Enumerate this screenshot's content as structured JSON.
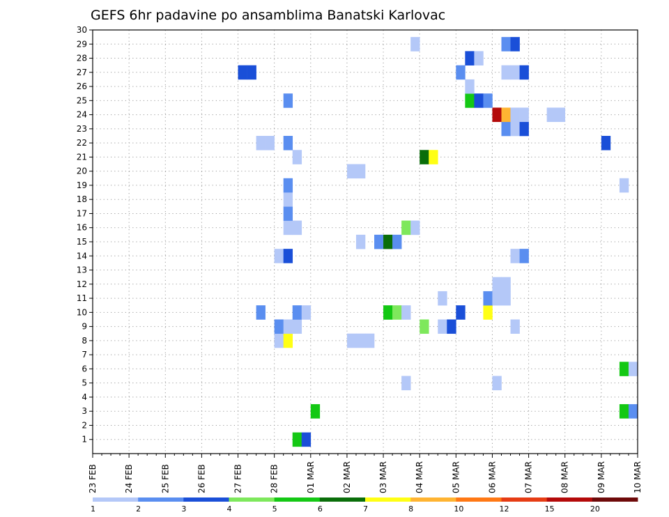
{
  "chart_data": {
    "type": "heatmap",
    "title": "GEFS 6hr padavine po ansamblima Banatski Karlovac",
    "xlabel": "",
    "ylabel": "",
    "x_labels": [
      "23 FEB",
      "24 FEB",
      "25 FEB",
      "26 FEB",
      "27 FEB",
      "28 FEB",
      "01 MAR",
      "02 MAR",
      "03 MAR",
      "04 MAR",
      "05 MAR",
      "06 MAR",
      "07 MAR",
      "08 MAR",
      "09 MAR",
      "10 MAR"
    ],
    "y_range": [
      0,
      30
    ],
    "y_ticks": [
      1,
      2,
      3,
      4,
      5,
      6,
      7,
      8,
      9,
      10,
      11,
      12,
      13,
      14,
      15,
      16,
      17,
      18,
      19,
      20,
      21,
      22,
      23,
      24,
      25,
      26,
      27,
      28,
      29,
      30
    ],
    "time_step_hours": 6,
    "grid": true,
    "colorbar": {
      "levels": [
        "1",
        "2",
        "3",
        "4",
        "5",
        "6",
        "7",
        "8",
        "10",
        "12",
        "15",
        "20"
      ],
      "colors": [
        "#b4c8f8",
        "#5a8ef0",
        "#1a4fd8",
        "#7ee85c",
        "#14c814",
        "#0a6e0a",
        "#ffff14",
        "#ffb432",
        "#ff7814",
        "#e63c14",
        "#b40a0a",
        "#6e0a0a"
      ]
    },
    "cells": [
      {
        "t": "28 FEB 12Z",
        "member": 1,
        "bin": 5
      },
      {
        "t": "28 FEB 18Z",
        "member": 1,
        "bin": 3
      },
      {
        "t": "01 MAR 00Z",
        "member": 3,
        "bin": 5
      },
      {
        "t": "03 MAR 12Z",
        "member": 5,
        "bin": 1
      },
      {
        "t": "06 MAR 00Z",
        "member": 5,
        "bin": 1
      },
      {
        "t": "09 MAR 12Z",
        "member": 6,
        "bin": 5
      },
      {
        "t": "09 MAR 18Z",
        "member": 6,
        "bin": 1
      },
      {
        "t": "09 MAR 12Z",
        "member": 3,
        "bin": 5
      },
      {
        "t": "09 MAR 18Z",
        "member": 3,
        "bin": 2
      },
      {
        "t": "10 MAR 00Z",
        "member": 3,
        "bin": 1
      },
      {
        "t": "28 FEB 00Z",
        "member": 8,
        "bin": 1
      },
      {
        "t": "28 FEB 06Z",
        "member": 8,
        "bin": 7
      },
      {
        "t": "02 MAR 00Z",
        "member": 8,
        "bin": 1
      },
      {
        "t": "02 MAR 06Z",
        "member": 8,
        "bin": 1
      },
      {
        "t": "02 MAR 12Z",
        "member": 8,
        "bin": 1
      },
      {
        "t": "28 FEB 00Z",
        "member": 9,
        "bin": 2
      },
      {
        "t": "28 FEB 06Z",
        "member": 9,
        "bin": 1
      },
      {
        "t": "28 FEB 12Z",
        "member": 9,
        "bin": 1
      },
      {
        "t": "04 MAR 00Z",
        "member": 9,
        "bin": 4
      },
      {
        "t": "04 MAR 12Z",
        "member": 9,
        "bin": 1
      },
      {
        "t": "04 MAR 18Z",
        "member": 9,
        "bin": 3
      },
      {
        "t": "06 MAR 12Z",
        "member": 9,
        "bin": 1
      },
      {
        "t": "27 FEB 12Z",
        "member": 10,
        "bin": 2
      },
      {
        "t": "28 FEB 12Z",
        "member": 10,
        "bin": 2
      },
      {
        "t": "28 FEB 18Z",
        "member": 10,
        "bin": 1
      },
      {
        "t": "03 MAR 00Z",
        "member": 10,
        "bin": 5
      },
      {
        "t": "03 MAR 06Z",
        "member": 10,
        "bin": 4
      },
      {
        "t": "03 MAR 12Z",
        "member": 10,
        "bin": 1
      },
      {
        "t": "05 MAR 00Z",
        "member": 10,
        "bin": 3
      },
      {
        "t": "05 MAR 18Z",
        "member": 10,
        "bin": 7
      },
      {
        "t": "10 MAR 00Z",
        "member": 10,
        "bin": 3
      },
      {
        "t": "04 MAR 12Z",
        "member": 11,
        "bin": 1
      },
      {
        "t": "05 MAR 18Z",
        "member": 11,
        "bin": 2
      },
      {
        "t": "06 MAR 00Z",
        "member": 11,
        "bin": 1
      },
      {
        "t": "06 MAR 06Z",
        "member": 11,
        "bin": 1
      },
      {
        "t": "06 MAR 00Z",
        "member": 12,
        "bin": 1
      },
      {
        "t": "06 MAR 06Z",
        "member": 12,
        "bin": 1
      },
      {
        "t": "28 FEB 00Z",
        "member": 14,
        "bin": 1
      },
      {
        "t": "28 FEB 06Z",
        "member": 14,
        "bin": 3
      },
      {
        "t": "06 MAR 12Z",
        "member": 14,
        "bin": 1
      },
      {
        "t": "06 MAR 18Z",
        "member": 14,
        "bin": 2
      },
      {
        "t": "02 MAR 06Z",
        "member": 15,
        "bin": 1
      },
      {
        "t": "02 MAR 18Z",
        "member": 15,
        "bin": 2
      },
      {
        "t": "03 MAR 00Z",
        "member": 15,
        "bin": 6
      },
      {
        "t": "03 MAR 06Z",
        "member": 15,
        "bin": 2
      },
      {
        "t": "28 FEB 06Z",
        "member": 16,
        "bin": 1
      },
      {
        "t": "28 FEB 12Z",
        "member": 16,
        "bin": 1
      },
      {
        "t": "03 MAR 12Z",
        "member": 16,
        "bin": 4
      },
      {
        "t": "03 MAR 18Z",
        "member": 16,
        "bin": 1
      },
      {
        "t": "28 FEB 06Z",
        "member": 17,
        "bin": 2
      },
      {
        "t": "28 FEB 06Z",
        "member": 18,
        "bin": 1
      },
      {
        "t": "28 FEB 06Z",
        "member": 19,
        "bin": 2
      },
      {
        "t": "09 MAR 12Z",
        "member": 19,
        "bin": 1
      },
      {
        "t": "02 MAR 00Z",
        "member": 20,
        "bin": 1
      },
      {
        "t": "02 MAR 06Z",
        "member": 20,
        "bin": 1
      },
      {
        "t": "28 FEB 12Z",
        "member": 21,
        "bin": 1
      },
      {
        "t": "04 MAR 00Z",
        "member": 21,
        "bin": 6
      },
      {
        "t": "04 MAR 06Z",
        "member": 21,
        "bin": 7
      },
      {
        "t": "27 FEB 12Z",
        "member": 22,
        "bin": 1
      },
      {
        "t": "27 FEB 18Z",
        "member": 22,
        "bin": 1
      },
      {
        "t": "28 FEB 06Z",
        "member": 22,
        "bin": 2
      },
      {
        "t": "09 MAR 00Z",
        "member": 22,
        "bin": 3
      },
      {
        "t": "06 MAR 06Z",
        "member": 23,
        "bin": 2
      },
      {
        "t": "06 MAR 12Z",
        "member": 23,
        "bin": 1
      },
      {
        "t": "06 MAR 18Z",
        "member": 23,
        "bin": 3
      },
      {
        "t": "06 MAR 00Z",
        "member": 24,
        "bin": 11
      },
      {
        "t": "06 MAR 06Z",
        "member": 24,
        "bin": 8
      },
      {
        "t": "06 MAR 12Z",
        "member": 24,
        "bin": 1
      },
      {
        "t": "06 MAR 18Z",
        "member": 24,
        "bin": 1
      },
      {
        "t": "07 MAR 12Z",
        "member": 24,
        "bin": 1
      },
      {
        "t": "07 MAR 18Z",
        "member": 24,
        "bin": 1
      },
      {
        "t": "28 FEB 06Z",
        "member": 25,
        "bin": 2
      },
      {
        "t": "05 MAR 06Z",
        "member": 25,
        "bin": 5
      },
      {
        "t": "05 MAR 12Z",
        "member": 25,
        "bin": 3
      },
      {
        "t": "05 MAR 18Z",
        "member": 25,
        "bin": 2
      },
      {
        "t": "05 MAR 06Z",
        "member": 26,
        "bin": 1
      },
      {
        "t": "27 FEB 00Z",
        "member": 27,
        "bin": 3
      },
      {
        "t": "27 FEB 06Z",
        "member": 27,
        "bin": 3
      },
      {
        "t": "05 MAR 00Z",
        "member": 27,
        "bin": 2
      },
      {
        "t": "06 MAR 06Z",
        "member": 27,
        "bin": 1
      },
      {
        "t": "06 MAR 12Z",
        "member": 27,
        "bin": 1
      },
      {
        "t": "06 MAR 18Z",
        "member": 27,
        "bin": 3
      },
      {
        "t": "05 MAR 06Z",
        "member": 28,
        "bin": 3
      },
      {
        "t": "05 MAR 12Z",
        "member": 28,
        "bin": 1
      },
      {
        "t": "03 MAR 18Z",
        "member": 29,
        "bin": 1
      },
      {
        "t": "06 MAR 06Z",
        "member": 29,
        "bin": 2
      },
      {
        "t": "06 MAR 12Z",
        "member": 29,
        "bin": 3
      }
    ]
  }
}
